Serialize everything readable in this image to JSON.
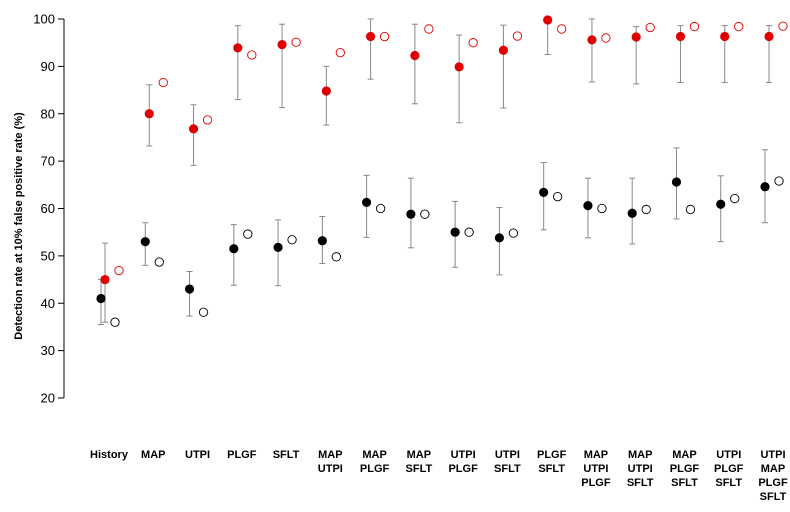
{
  "chart_data": {
    "type": "scatter",
    "title": "",
    "ylabel": "Detection rate at 10% false positive rate (%)",
    "xlabel": "",
    "ylim": [
      20,
      100
    ],
    "yticks": [
      20,
      30,
      40,
      50,
      60,
      70,
      80,
      90,
      100
    ],
    "grid": false,
    "legend": "none",
    "colors": {
      "black_series": "#000000",
      "red_series": "#e00000",
      "error_bar": "#888888"
    },
    "categories": [
      [
        "History"
      ],
      [
        "MAP"
      ],
      [
        "UTPI"
      ],
      [
        "PLGF"
      ],
      [
        "SFLT"
      ],
      [
        "MAP",
        "UTPI"
      ],
      [
        "MAP",
        "PLGF"
      ],
      [
        "MAP",
        "SFLT"
      ],
      [
        "UTPI",
        "PLGF"
      ],
      [
        "UTPI",
        "SFLT"
      ],
      [
        "PLGF",
        "SFLT"
      ],
      [
        "MAP",
        "UTPI",
        "PLGF"
      ],
      [
        "MAP",
        "UTPI",
        "SFLT"
      ],
      [
        "MAP",
        "PLGF",
        "SFLT"
      ],
      [
        "UTPI",
        "PLGF",
        "SFLT"
      ],
      [
        "UTPI",
        "MAP",
        "PLGF",
        "SFLT"
      ]
    ],
    "series": [
      {
        "color": "#000000",
        "values": [
          41.0,
          53.0,
          43.0,
          51.5,
          51.8,
          53.2,
          61.3,
          58.8,
          55.0,
          53.8,
          63.4,
          60.6,
          59.0,
          65.6,
          60.9,
          64.6
        ],
        "ci_low": [
          35.5,
          48.0,
          37.3,
          43.8,
          43.7,
          48.4,
          53.9,
          51.7,
          47.6,
          46.0,
          55.5,
          53.8,
          52.5,
          57.8,
          53.0,
          57.0
        ],
        "ci_high": [
          45.0,
          57.0,
          46.7,
          56.6,
          57.6,
          58.3,
          67.0,
          66.4,
          61.5,
          60.2,
          69.7,
          66.4,
          66.4,
          72.8,
          66.9,
          72.4
        ],
        "open_values": [
          36.0,
          48.7,
          38.1,
          54.6,
          53.4,
          49.8,
          60.0,
          58.8,
          55.0,
          54.8,
          62.5,
          60.0,
          59.8,
          59.8,
          62.1,
          65.8
        ]
      },
      {
        "color": "#e00000",
        "values": [
          45.0,
          80.0,
          76.8,
          93.9,
          94.6,
          84.8,
          96.3,
          92.3,
          89.9,
          93.4,
          99.8,
          95.6,
          96.2,
          96.3,
          96.3,
          96.3
        ],
        "ci_low": [
          36.0,
          73.2,
          69.1,
          83.0,
          81.3,
          77.6,
          87.3,
          82.1,
          78.1,
          81.2,
          92.5,
          86.7,
          86.3,
          86.6,
          86.6,
          86.6
        ],
        "ci_high": [
          52.7,
          86.1,
          81.9,
          98.6,
          98.9,
          90.0,
          100.0,
          98.9,
          96.6,
          98.7,
          100.0,
          100.0,
          98.4,
          98.6,
          98.6,
          98.6
        ],
        "open_values": [
          46.9,
          86.6,
          78.7,
          92.4,
          95.1,
          92.9,
          96.3,
          97.9,
          95.0,
          96.4,
          97.9,
          96.0,
          98.2,
          98.4,
          98.4,
          98.5
        ]
      }
    ]
  }
}
